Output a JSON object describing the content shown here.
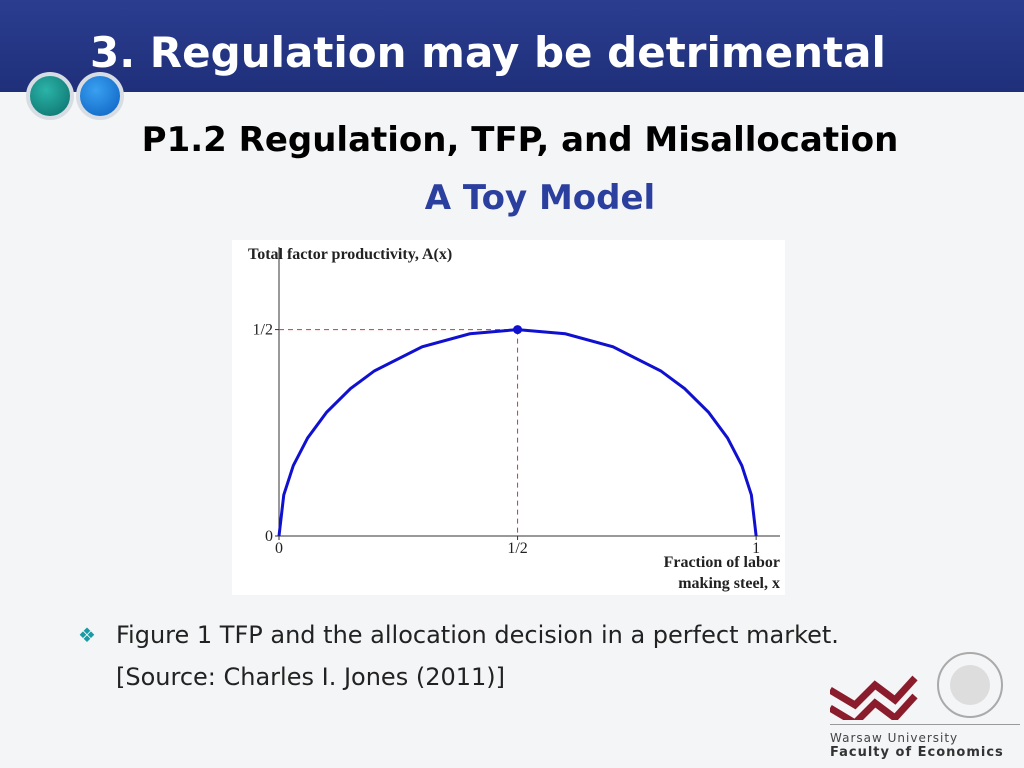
{
  "slide": {
    "title": "3. Regulation may be detrimental",
    "subtitle": "P1.2 Regulation, TFP, and Misallocation",
    "heading": "A Toy Model",
    "bullet": [
      "Figure 1 TFP and the allocation decision in a perfect market.",
      "[Source: Charles I. Jones (2011)]"
    ],
    "logo": [
      "Warsaw University",
      "Faculty of Economics"
    ]
  },
  "chart_data": {
    "type": "line",
    "y_label": "Total factor productivity, A(x)",
    "x_label": [
      "Fraction of labor",
      "making steel, x"
    ],
    "x": [
      0,
      0.01,
      0.03,
      0.06,
      0.1,
      0.15,
      0.2,
      0.3,
      0.4,
      0.5,
      0.6,
      0.7,
      0.8,
      0.85,
      0.9,
      0.94,
      0.97,
      0.99,
      1
    ],
    "values": [
      0,
      0.0995,
      0.1706,
      0.2375,
      0.3,
      0.3571,
      0.4,
      0.4583,
      0.4899,
      0.5,
      0.4899,
      0.4583,
      0.4,
      0.3571,
      0.3,
      0.2375,
      0.1706,
      0.0995,
      0
    ],
    "color": "#1010d0",
    "highlight": {
      "x": 0.5,
      "y": 0.5
    },
    "xlim": [
      0,
      1.05
    ],
    "ylim": [
      0,
      0.7
    ],
    "xticks": [
      0,
      {
        "value": 0.5,
        "label": "1/2"
      },
      1
    ],
    "yticks": [
      0,
      {
        "value": 0.5,
        "label": "1/2"
      }
    ]
  }
}
